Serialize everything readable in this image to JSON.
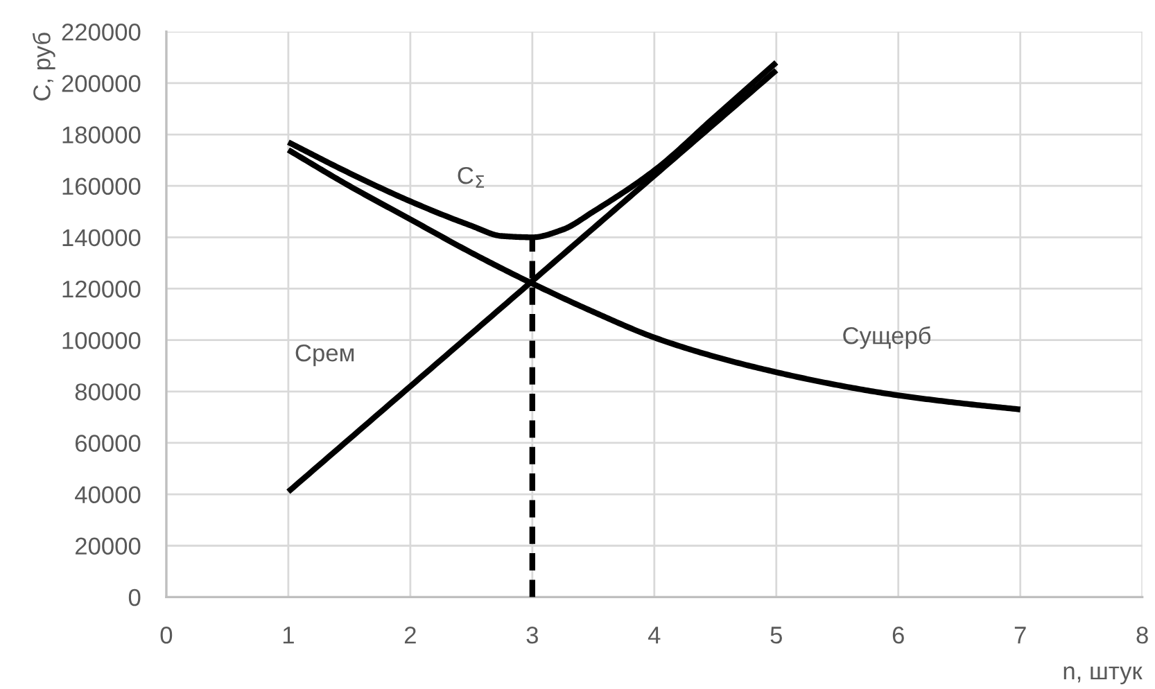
{
  "chart_data": {
    "type": "line",
    "xlabel": "n, штук",
    "ylabel": "С, руб",
    "xlim": [
      0,
      8
    ],
    "xticks": [
      0,
      1,
      2,
      3,
      4,
      5,
      6,
      7,
      8
    ],
    "ylim": [
      0,
      220000
    ],
    "yticks": [
      0,
      20000,
      40000,
      60000,
      80000,
      100000,
      120000,
      140000,
      160000,
      180000,
      200000,
      220000
    ],
    "grid": true,
    "marker": "none",
    "line_style": "solid",
    "series": [
      {
        "name": "Срем",
        "color": "#000000",
        "x": [
          1,
          2,
          3,
          4,
          5
        ],
        "values": [
          41000,
          82000,
          123000,
          164000,
          205000
        ]
      },
      {
        "name": "Сущерб",
        "color": "#000000",
        "x": [
          1,
          1.5,
          2,
          2.5,
          3,
          3.5,
          4,
          4.5,
          5,
          5.5,
          6,
          6.5,
          7
        ],
        "values": [
          174000,
          160000,
          147000,
          134000,
          122000,
          111000,
          101000,
          93500,
          87500,
          82500,
          78500,
          75500,
          73000
        ]
      },
      {
        "name": "С$_{Σ}$",
        "color": "#000000",
        "x": [
          1,
          1.5,
          2,
          2.5,
          2.75,
          3,
          3.25,
          3.5,
          4,
          4.5,
          5
        ],
        "values": [
          177000,
          165000,
          154000,
          144500,
          140500,
          140000,
          143000,
          150000,
          166000,
          187000,
          208000
        ]
      },
      {
        "color": "#000000",
        "x": [
          3,
          3
        ],
        "values": [
          0,
          140000
        ],
        "line_style": "dashed"
      }
    ]
  }
}
